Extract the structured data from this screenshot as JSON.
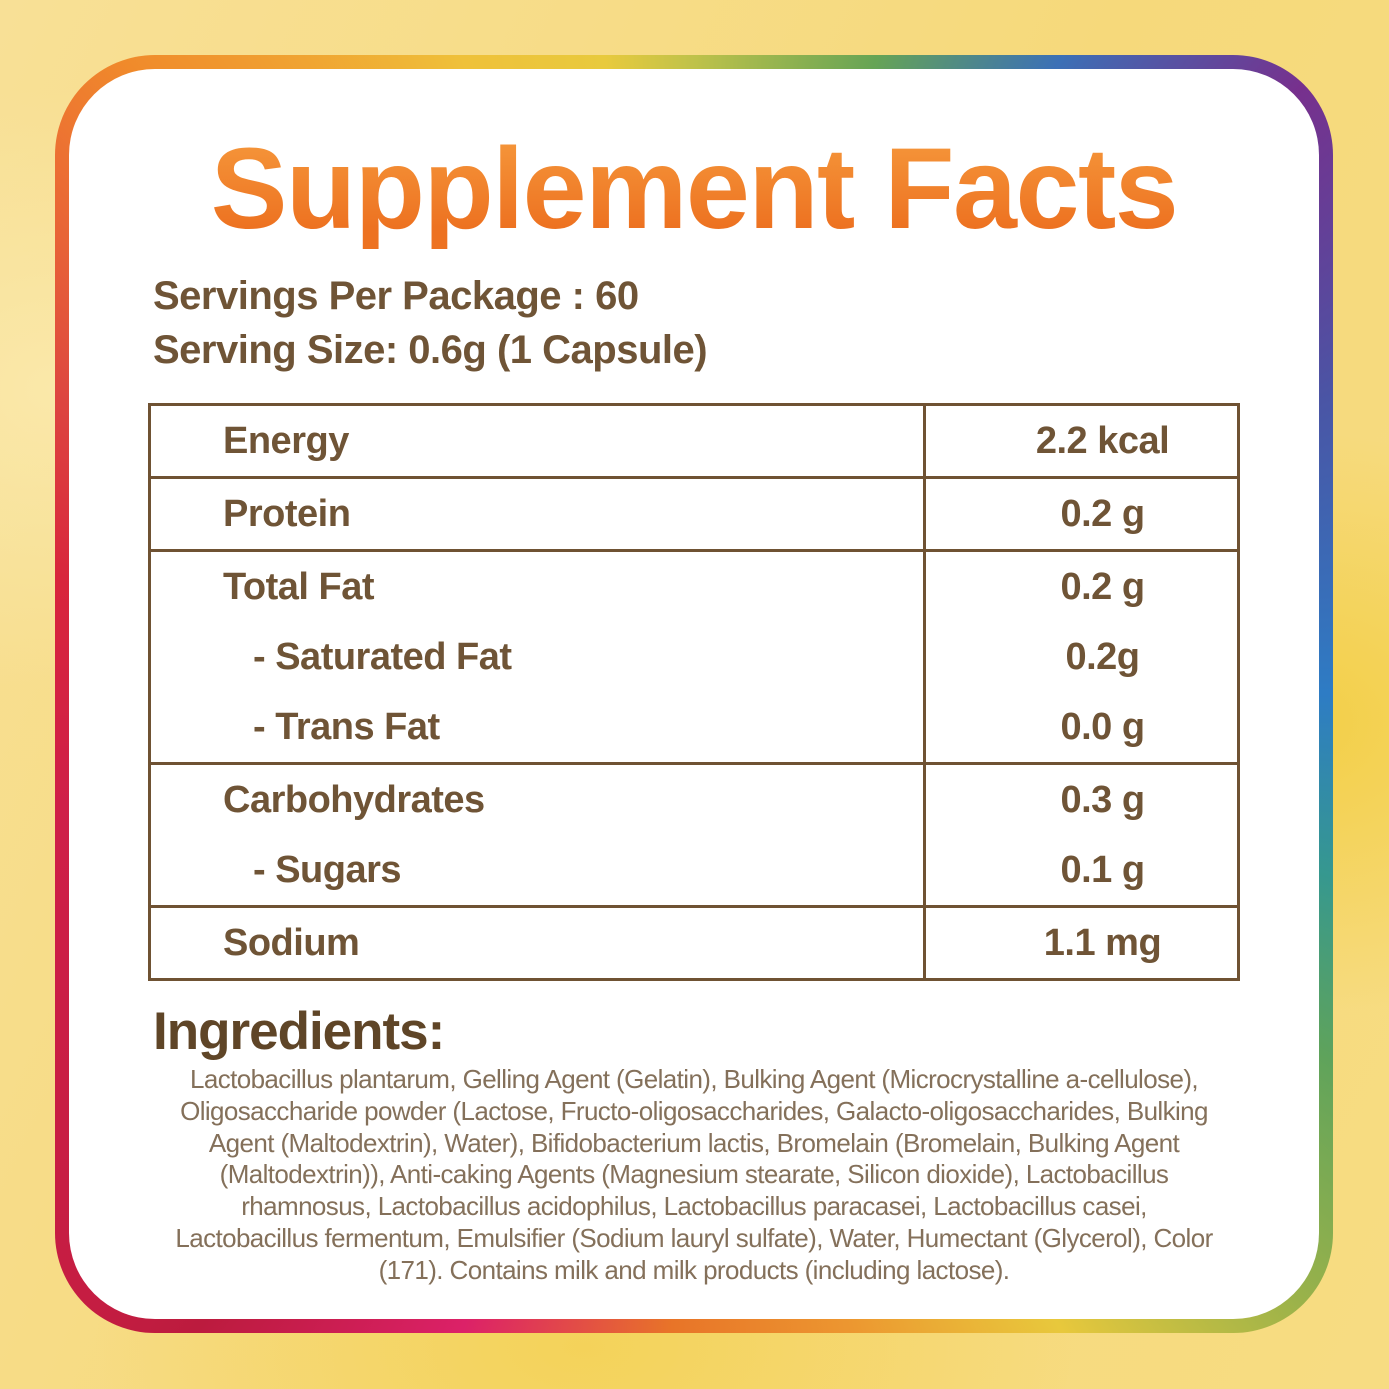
{
  "title": "Supplement Facts",
  "serving_info": {
    "servings_per_package": "Servings Per Package : 60",
    "serving_size": "Serving Size: 0.6g (1 Capsule)"
  },
  "nutrition_table": {
    "groups": [
      {
        "rows": [
          {
            "label": "Energy",
            "value": "2.2 kcal"
          }
        ]
      },
      {
        "rows": [
          {
            "label": "Protein",
            "value": "0.2 g"
          }
        ]
      },
      {
        "rows": [
          {
            "label": "Total Fat",
            "value": "0.2 g"
          },
          {
            "label": "- Saturated Fat",
            "value": "0.2g"
          },
          {
            "label": "- Trans Fat",
            "value": "0.0 g"
          }
        ]
      },
      {
        "rows": [
          {
            "label": "Carbohydrates",
            "value": "0.3 g"
          },
          {
            "label": "- Sugars",
            "value": "0.1 g"
          }
        ]
      },
      {
        "rows": [
          {
            "label": "Sodium",
            "value": "1.1 mg"
          }
        ]
      }
    ]
  },
  "ingredients": {
    "heading": "Ingredients:",
    "lines": [
      "Lactobacillus plantarum, Gelling Agent (Gelatin), Bulking Agent (Microcrystalline a-cellulose),",
      "Oligosaccharide powder (Lactose, Fructo-oligosaccharides, Galacto-oligosaccharides, Bulking",
      "Agent (Maltodextrin), Water), Bifidobacterium lactis, Bromelain (Bromelain, Bulking Agent",
      "(Maltodextrin)), Anti-caking Agents (Magnesium stearate, Silicon dioxide), Lactobacillus",
      "rhamnosus, Lactobacillus acidophilus, Lactobacillus paracasei, Lactobacillus casei,",
      "Lactobacillus fermentum, Emulsifier (Sodium lauryl sulfate), Water, Humectant (Glycerol), Color",
      "(171). Contains milk and milk products (including lactose)."
    ]
  },
  "colors": {
    "title_orange": "#EF7C23",
    "heading_brown": "#5F4527",
    "text_brown": "#6F5436",
    "ingredients_brown": "#84705A",
    "table_border": "#6F5233",
    "background_yellow": "#F6D97B",
    "card_white": "#FFFFFF",
    "border_rainbow": [
      "#F08A2B",
      "#E8CA3D",
      "#66A455",
      "#3B70B6",
      "#77308D",
      "#2E7CC4",
      "#36988F",
      "#9AB24A",
      "#E8C83C",
      "#E87428",
      "#DC2168",
      "#BC1B3E",
      "#CF1F48"
    ]
  }
}
